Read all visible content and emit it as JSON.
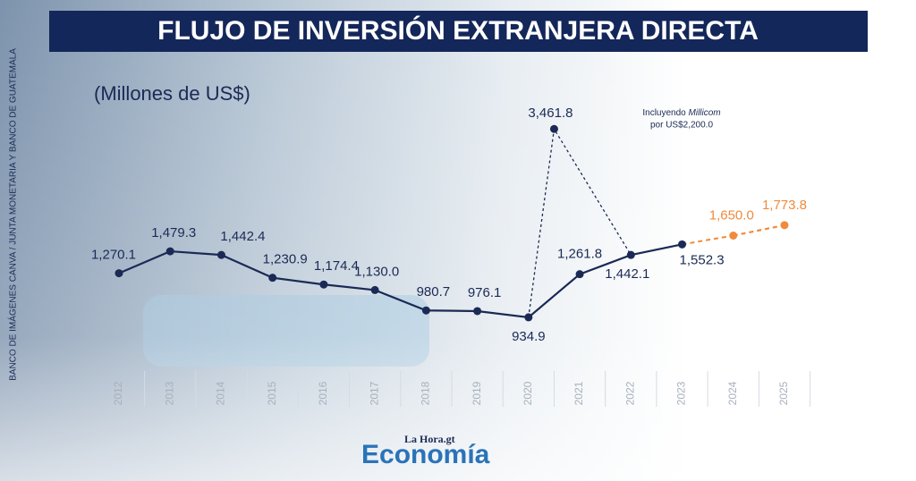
{
  "chart_data": {
    "type": "line",
    "title": "FLUJO DE INVERSIÓN EXTRANJERA DIRECTA",
    "subtitle": "(Millones de US$)",
    "source": "BANCO DE IMÁGENES CANVA / JUNTA MONETARIA Y BANCO DE GUATEMALA",
    "logo": {
      "top": "La Hora.gt",
      "bottom": "Economía"
    },
    "annotation": {
      "line1": "Incluyendo",
      "line1_italic": "Millicom",
      "line2": "por US$2,200.0"
    },
    "categories": [
      "2012",
      "2013",
      "2014",
      "2015",
      "2016",
      "2017",
      "2018",
      "2019",
      "2020",
      "2021",
      "2022",
      "2023",
      "2024",
      "2025"
    ],
    "log_scale": true,
    "ylim": [
      800,
      4000
    ],
    "series": [
      {
        "color": "#1b2a55",
        "dashed": false,
        "values": [
          1270.1,
          1479.3,
          1442.4,
          1230.9,
          1174.4,
          1130.0,
          980.7,
          976.1,
          934.9,
          1261.8,
          1442.1,
          1552.3,
          null,
          null
        ],
        "value_labels": [
          "1,270.1",
          "1,479.3",
          "1,442.4",
          "1,230.9",
          "1,174.4",
          "1,130.0",
          "980.7",
          "976.1",
          "934.9",
          "1,261.8",
          "1,442.1",
          "1,552.3",
          null,
          null
        ]
      },
      {
        "color": "#f08a3c",
        "dashed": true,
        "values": [
          null,
          null,
          null,
          null,
          null,
          null,
          null,
          null,
          null,
          null,
          null,
          null,
          1650.0,
          1773.8
        ],
        "value_labels": [
          null,
          null,
          null,
          null,
          null,
          null,
          null,
          null,
          null,
          null,
          null,
          null,
          "1,650.0",
          "1,773.8"
        ]
      },
      {
        "color": "#1b2a55",
        "dashed": true,
        "values": [
          null,
          null,
          null,
          null,
          null,
          null,
          null,
          null,
          null,
          3461.8,
          null,
          null,
          null,
          null
        ],
        "value_labels": [
          null,
          null,
          null,
          null,
          null,
          null,
          null,
          null,
          null,
          "3,461.8",
          null,
          null,
          null,
          null
        ]
      }
    ]
  }
}
